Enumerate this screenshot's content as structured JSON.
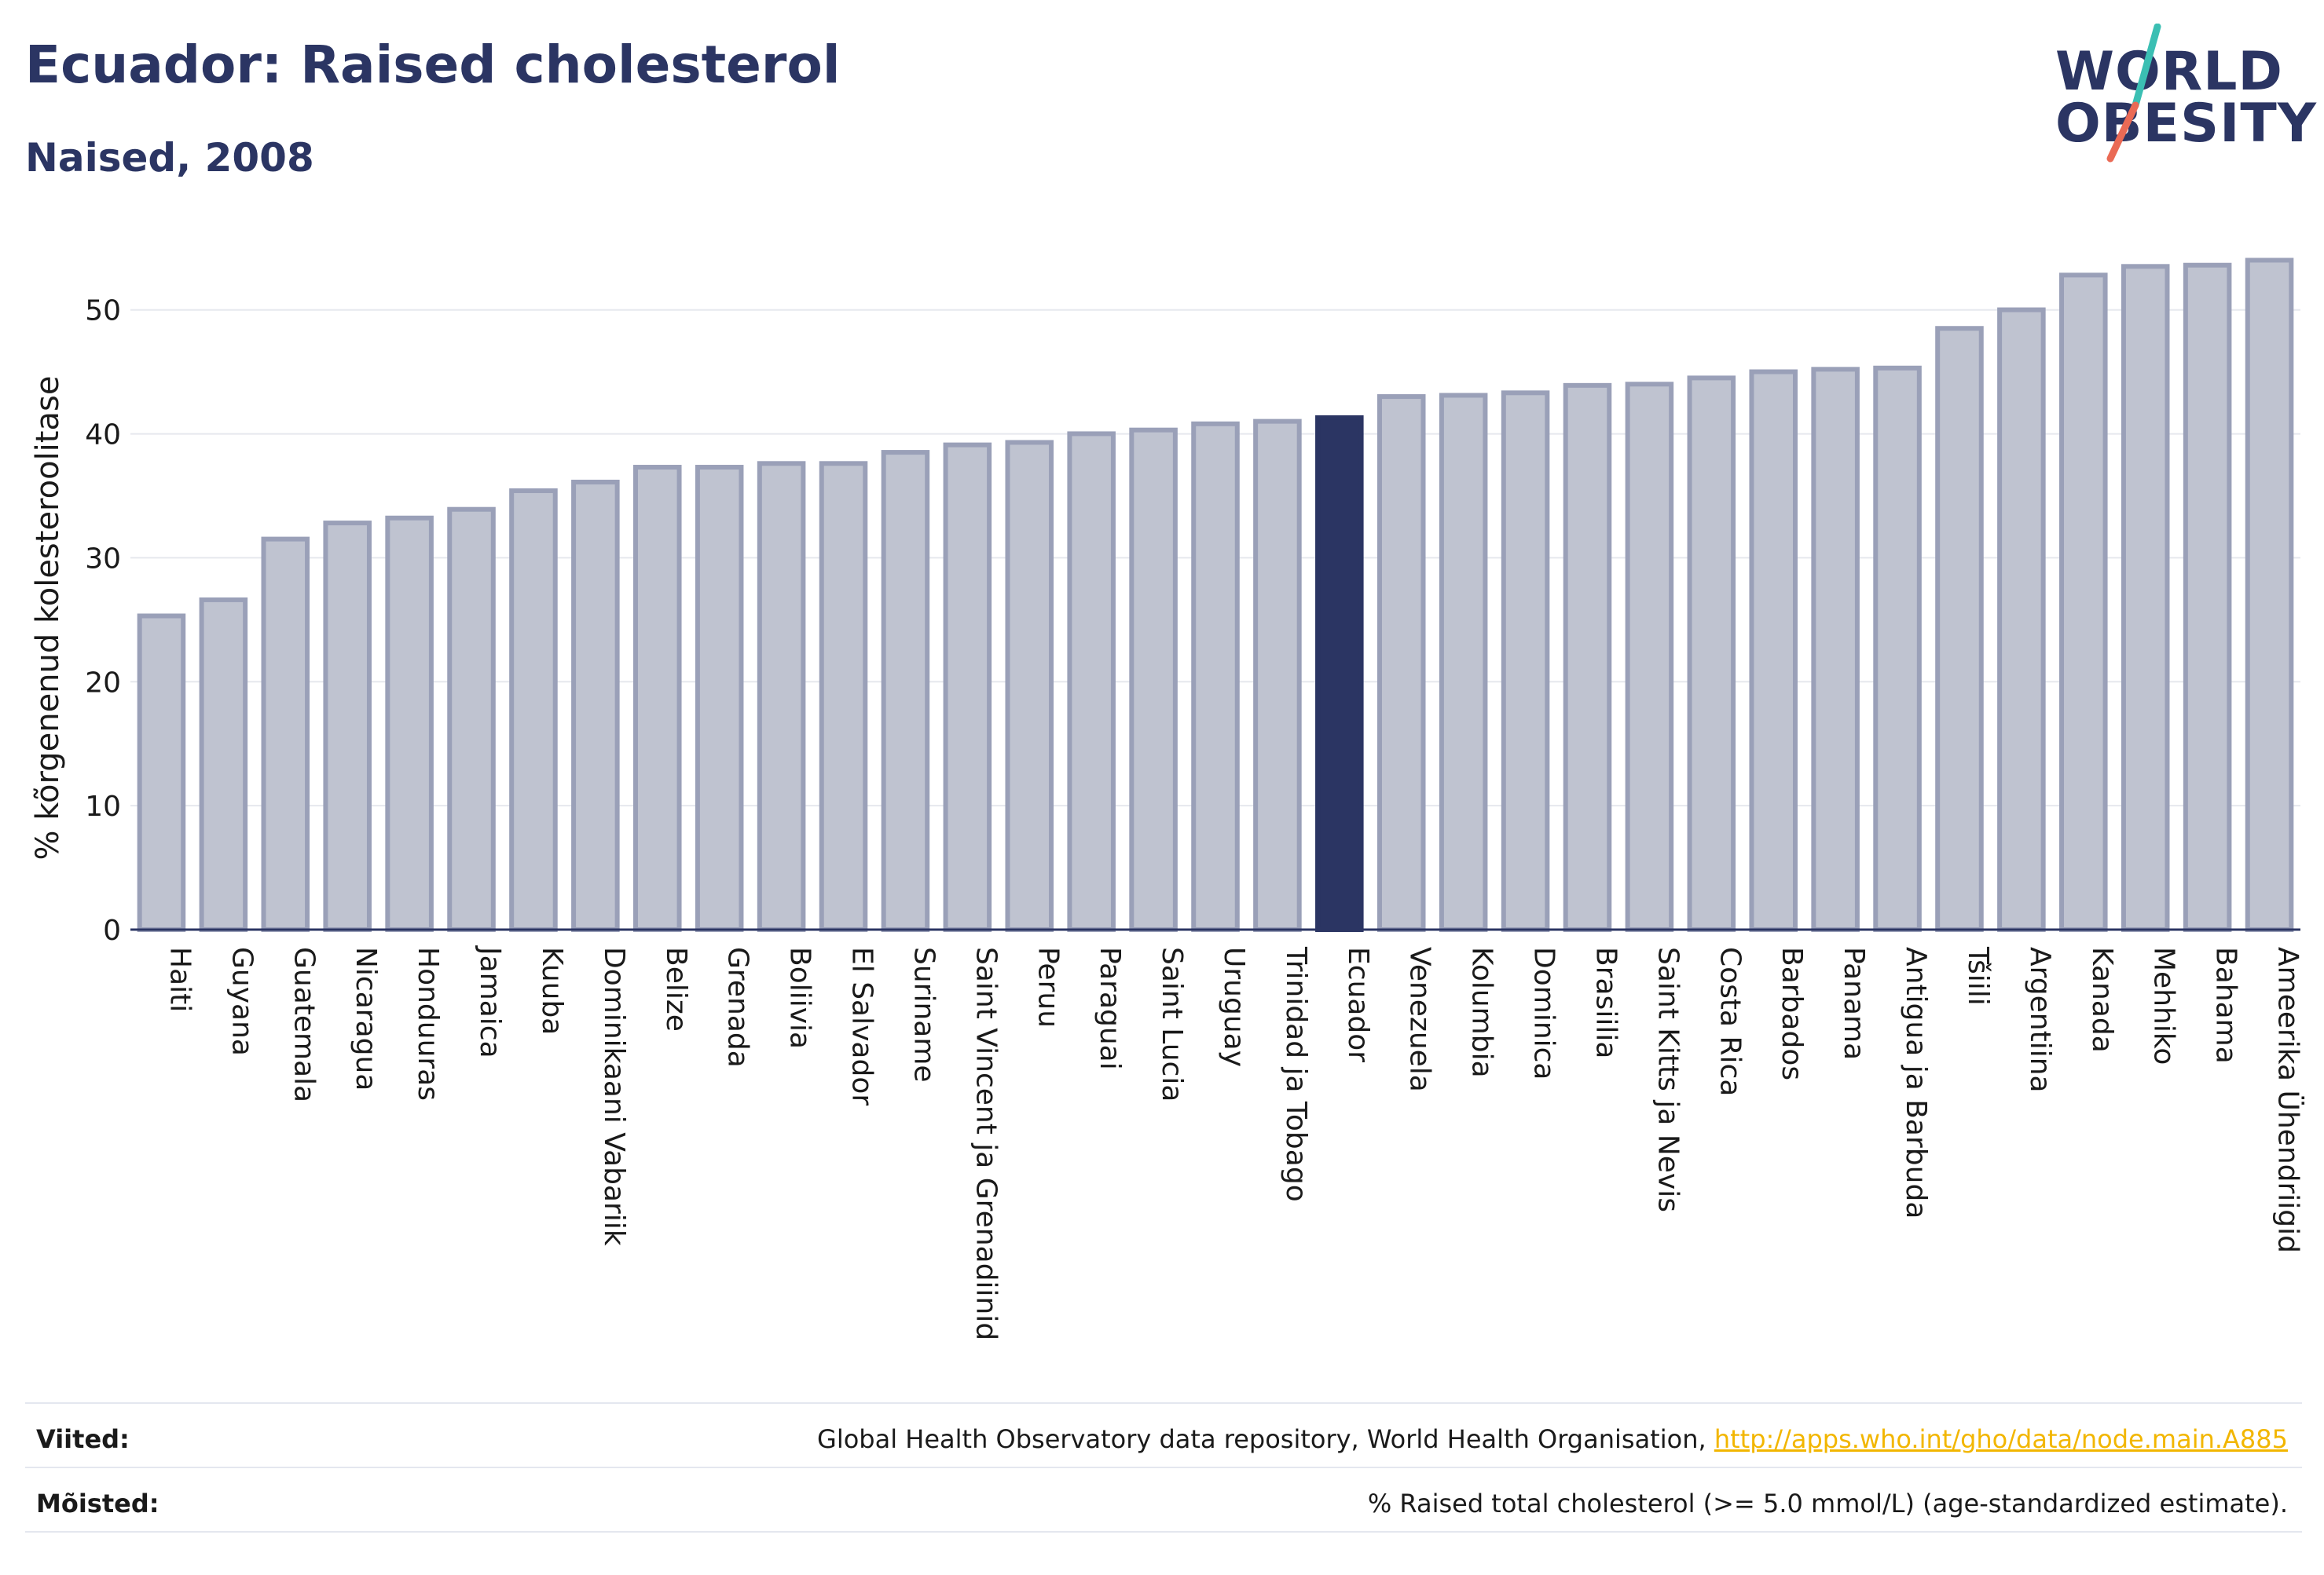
{
  "header": {
    "title": "Ecuador: Raised cholesterol",
    "subtitle": "Naised, 2008"
  },
  "logo": {
    "line1": "WORLD",
    "line2": "OBESITY",
    "slash_colors": [
      "#3bbfb3",
      "#ea6a55"
    ]
  },
  "colors": {
    "bar": "#bfc3d0",
    "bar_border": "#9aa0b8",
    "highlight": "#2b3563",
    "axis": "#2b3563",
    "grid": "#e6e8ee"
  },
  "chart_data": {
    "type": "bar",
    "ylabel": "% kõrgenenud kolesteroolitase",
    "ylim": [
      0,
      56
    ],
    "yticks": [
      0,
      10,
      20,
      30,
      40,
      50
    ],
    "grid": true,
    "highlight": "Ecuador",
    "categories": [
      "Haiti",
      "Guyana",
      "Guatemala",
      "Nicaragua",
      "Honduuras",
      "Jamaica",
      "Kuuba",
      "Dominikaani Vabariik",
      "Belize",
      "Grenada",
      "Boliivia",
      "El Salvador",
      "Suriname",
      "Saint Vincent ja Grenadiinid",
      "Peruu",
      "Paraguai",
      "Saint Lucia",
      "Uruguay",
      "Trinidad ja Tobago",
      "Ecuador",
      "Venezuela",
      "Kolumbia",
      "Dominica",
      "Brasiilia",
      "Saint Kitts ja Nevis",
      "Costa Rica",
      "Barbados",
      "Panama",
      "Antigua ja Barbuda",
      "Tšiili",
      "Argentiina",
      "Kanada",
      "Mehhiko",
      "Bahama",
      "Ameerika Ühendriigid"
    ],
    "values": [
      25.5,
      26.8,
      31.7,
      33.0,
      33.4,
      34.1,
      35.6,
      36.3,
      37.5,
      37.5,
      37.8,
      37.8,
      38.7,
      39.3,
      39.5,
      40.2,
      40.5,
      41.0,
      41.2,
      41.5,
      43.2,
      43.3,
      43.5,
      44.1,
      44.2,
      44.7,
      45.2,
      45.4,
      45.5,
      48.7,
      50.2,
      53.0,
      53.7,
      53.8,
      54.2
    ]
  },
  "footer": {
    "sources_label": "Viited:",
    "sources_text": "Global Health Observatory data repository, World Health Organisation,",
    "sources_link": "http://apps.who.int/gho/data/node.main.A885",
    "definitions_label": "Mõisted:",
    "definitions_text": "% Raised total cholesterol (>= 5.0 mmol/L) (age-standardized estimate)."
  }
}
